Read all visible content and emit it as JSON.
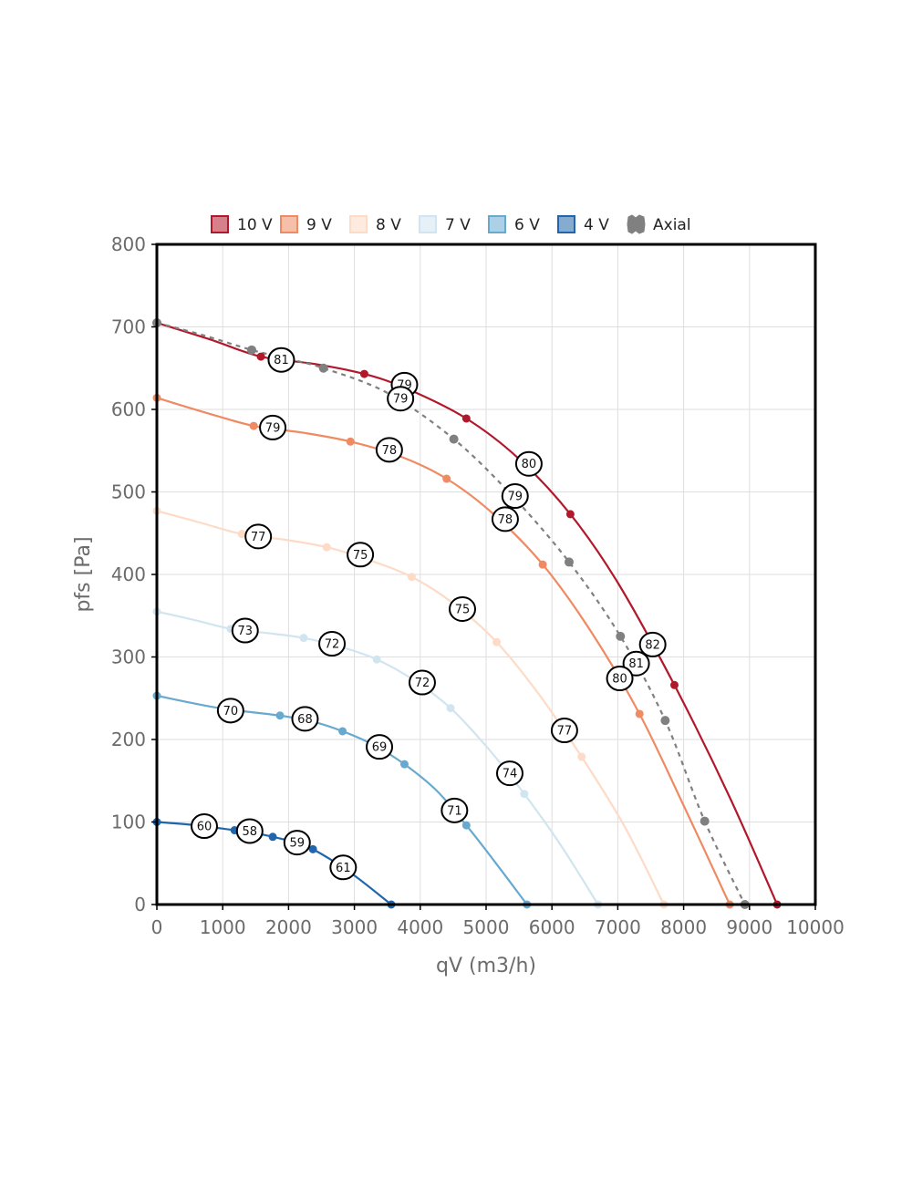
{
  "chart_data": {
    "type": "line",
    "title": "",
    "xlabel": "qV (m3/h)",
    "ylabel": "pfs [Pa]",
    "xlim": [
      0,
      10000
    ],
    "ylim": [
      0,
      800
    ],
    "x_ticks": [
      0,
      1000,
      2000,
      3000,
      4000,
      5000,
      6000,
      7000,
      8000,
      9000,
      10000
    ],
    "y_ticks": [
      0,
      100,
      200,
      300,
      400,
      500,
      600,
      700,
      800
    ],
    "grid": true,
    "legend_position": "top",
    "series": [
      {
        "name": "10 V",
        "color": "#b2182b",
        "points": [
          [
            0,
            705
          ],
          [
            1580,
            664
          ],
          [
            3150,
            643
          ],
          [
            4700,
            589
          ],
          [
            6280,
            473
          ],
          [
            7860,
            266
          ],
          [
            9420,
            0
          ]
        ],
        "curve": [
          [
            0,
            705
          ],
          [
            800,
            685
          ],
          [
            1580,
            664
          ],
          [
            2400,
            655
          ],
          [
            3150,
            643
          ],
          [
            3800,
            625
          ],
          [
            4700,
            589
          ],
          [
            5500,
            540
          ],
          [
            6280,
            473
          ],
          [
            7000,
            390
          ],
          [
            7860,
            266
          ],
          [
            8700,
            130
          ],
          [
            9420,
            0
          ]
        ]
      },
      {
        "name": "9 V",
        "color": "#ef8a62",
        "points": [
          [
            0,
            614
          ],
          [
            1470,
            580
          ],
          [
            2940,
            561
          ],
          [
            4400,
            516
          ],
          [
            5860,
            412
          ],
          [
            7330,
            231
          ],
          [
            8700,
            0
          ]
        ],
        "curve": [
          [
            0,
            614
          ],
          [
            700,
            597
          ],
          [
            1470,
            580
          ],
          [
            2200,
            572
          ],
          [
            2940,
            561
          ],
          [
            3700,
            543
          ],
          [
            4400,
            516
          ],
          [
            5100,
            474
          ],
          [
            5860,
            412
          ],
          [
            6600,
            330
          ],
          [
            7330,
            231
          ],
          [
            8000,
            120
          ],
          [
            8700,
            0
          ]
        ]
      },
      {
        "name": "8 V",
        "color": "#fddbc7",
        "points": [
          [
            0,
            477
          ],
          [
            1290,
            449
          ],
          [
            2580,
            433
          ],
          [
            3870,
            397
          ],
          [
            5160,
            318
          ],
          [
            6450,
            179
          ],
          [
            7700,
            0
          ]
        ],
        "curve": [
          [
            0,
            477
          ],
          [
            650,
            463
          ],
          [
            1290,
            449
          ],
          [
            1950,
            442
          ],
          [
            2580,
            433
          ],
          [
            3200,
            418
          ],
          [
            3870,
            397
          ],
          [
            4500,
            365
          ],
          [
            5160,
            318
          ],
          [
            5800,
            255
          ],
          [
            6450,
            179
          ],
          [
            7100,
            95
          ],
          [
            7700,
            0
          ]
        ]
      },
      {
        "name": "7 V",
        "color": "#d1e5f0",
        "points": [
          [
            0,
            355
          ],
          [
            1120,
            334
          ],
          [
            2230,
            323
          ],
          [
            3340,
            297
          ],
          [
            4460,
            238
          ],
          [
            5580,
            134
          ],
          [
            6700,
            0
          ]
        ],
        "curve": [
          [
            0,
            355
          ],
          [
            560,
            345
          ],
          [
            1120,
            334
          ],
          [
            1680,
            329
          ],
          [
            2230,
            323
          ],
          [
            2800,
            312
          ],
          [
            3340,
            297
          ],
          [
            3900,
            272
          ],
          [
            4460,
            238
          ],
          [
            5000,
            192
          ],
          [
            5580,
            134
          ],
          [
            6150,
            70
          ],
          [
            6700,
            0
          ]
        ]
      },
      {
        "name": "6 V",
        "color": "#67a9cf",
        "points": [
          [
            0,
            253
          ],
          [
            1870,
            229
          ],
          [
            2820,
            210
          ],
          [
            3760,
            170
          ],
          [
            4700,
            96
          ],
          [
            5620,
            0
          ]
        ],
        "curve": [
          [
            0,
            253
          ],
          [
            950,
            238
          ],
          [
            1870,
            229
          ],
          [
            2350,
            222
          ],
          [
            2820,
            210
          ],
          [
            3300,
            193
          ],
          [
            3760,
            170
          ],
          [
            4250,
            138
          ],
          [
            4700,
            96
          ],
          [
            5150,
            50
          ],
          [
            5620,
            0
          ]
        ]
      },
      {
        "name": "4 V",
        "color": "#2166ac",
        "points": [
          [
            0,
            100
          ],
          [
            1180,
            90
          ],
          [
            1760,
            82
          ],
          [
            2370,
            67
          ],
          [
            3560,
            0
          ]
        ],
        "curve": [
          [
            0,
            100
          ],
          [
            600,
            96
          ],
          [
            1180,
            90
          ],
          [
            1470,
            87
          ],
          [
            1760,
            82
          ],
          [
            2060,
            76
          ],
          [
            2370,
            67
          ],
          [
            2950,
            38
          ],
          [
            3560,
            0
          ]
        ]
      },
      {
        "name": "Axial",
        "color": "#808080",
        "dashed": true,
        "points": [
          [
            0,
            705
          ],
          [
            1440,
            672
          ],
          [
            2530,
            650
          ],
          [
            4510,
            564
          ],
          [
            6260,
            415
          ],
          [
            7040,
            325
          ],
          [
            7720,
            223
          ],
          [
            8320,
            101
          ],
          [
            8930,
            0
          ]
        ],
        "curve": [
          [
            0,
            705
          ],
          [
            700,
            690
          ],
          [
            1440,
            672
          ],
          [
            2000,
            661
          ],
          [
            2530,
            650
          ],
          [
            3500,
            620
          ],
          [
            4510,
            564
          ],
          [
            5400,
            495
          ],
          [
            6260,
            415
          ],
          [
            7040,
            325
          ],
          [
            7720,
            223
          ],
          [
            8320,
            101
          ],
          [
            8930,
            0
          ]
        ]
      }
    ],
    "annotations": [
      {
        "label": "81",
        "x": 1890,
        "y": 660
      },
      {
        "label": "79",
        "x": 3760,
        "y": 630
      },
      {
        "label": "79",
        "x": 3700,
        "y": 613
      },
      {
        "label": "80",
        "x": 5650,
        "y": 534
      },
      {
        "label": "79",
        "x": 5440,
        "y": 495
      },
      {
        "label": "78",
        "x": 5290,
        "y": 467
      },
      {
        "label": "82",
        "x": 7530,
        "y": 315
      },
      {
        "label": "81",
        "x": 7280,
        "y": 292
      },
      {
        "label": "80",
        "x": 7030,
        "y": 274
      },
      {
        "label": "79",
        "x": 1760,
        "y": 578
      },
      {
        "label": "78",
        "x": 3530,
        "y": 551
      },
      {
        "label": "77",
        "x": 1540,
        "y": 446
      },
      {
        "label": "75",
        "x": 3090,
        "y": 424
      },
      {
        "label": "75",
        "x": 4640,
        "y": 358
      },
      {
        "label": "77",
        "x": 6190,
        "y": 211
      },
      {
        "label": "73",
        "x": 1340,
        "y": 332
      },
      {
        "label": "72",
        "x": 2660,
        "y": 316
      },
      {
        "label": "72",
        "x": 4030,
        "y": 269
      },
      {
        "label": "74",
        "x": 5360,
        "y": 159
      },
      {
        "label": "70",
        "x": 1120,
        "y": 235
      },
      {
        "label": "68",
        "x": 2250,
        "y": 225
      },
      {
        "label": "69",
        "x": 3380,
        "y": 191
      },
      {
        "label": "71",
        "x": 4520,
        "y": 114
      },
      {
        "label": "60",
        "x": 720,
        "y": 95
      },
      {
        "label": "58",
        "x": 1410,
        "y": 89
      },
      {
        "label": "59",
        "x": 2130,
        "y": 75
      },
      {
        "label": "61",
        "x": 2830,
        "y": 45
      }
    ]
  }
}
